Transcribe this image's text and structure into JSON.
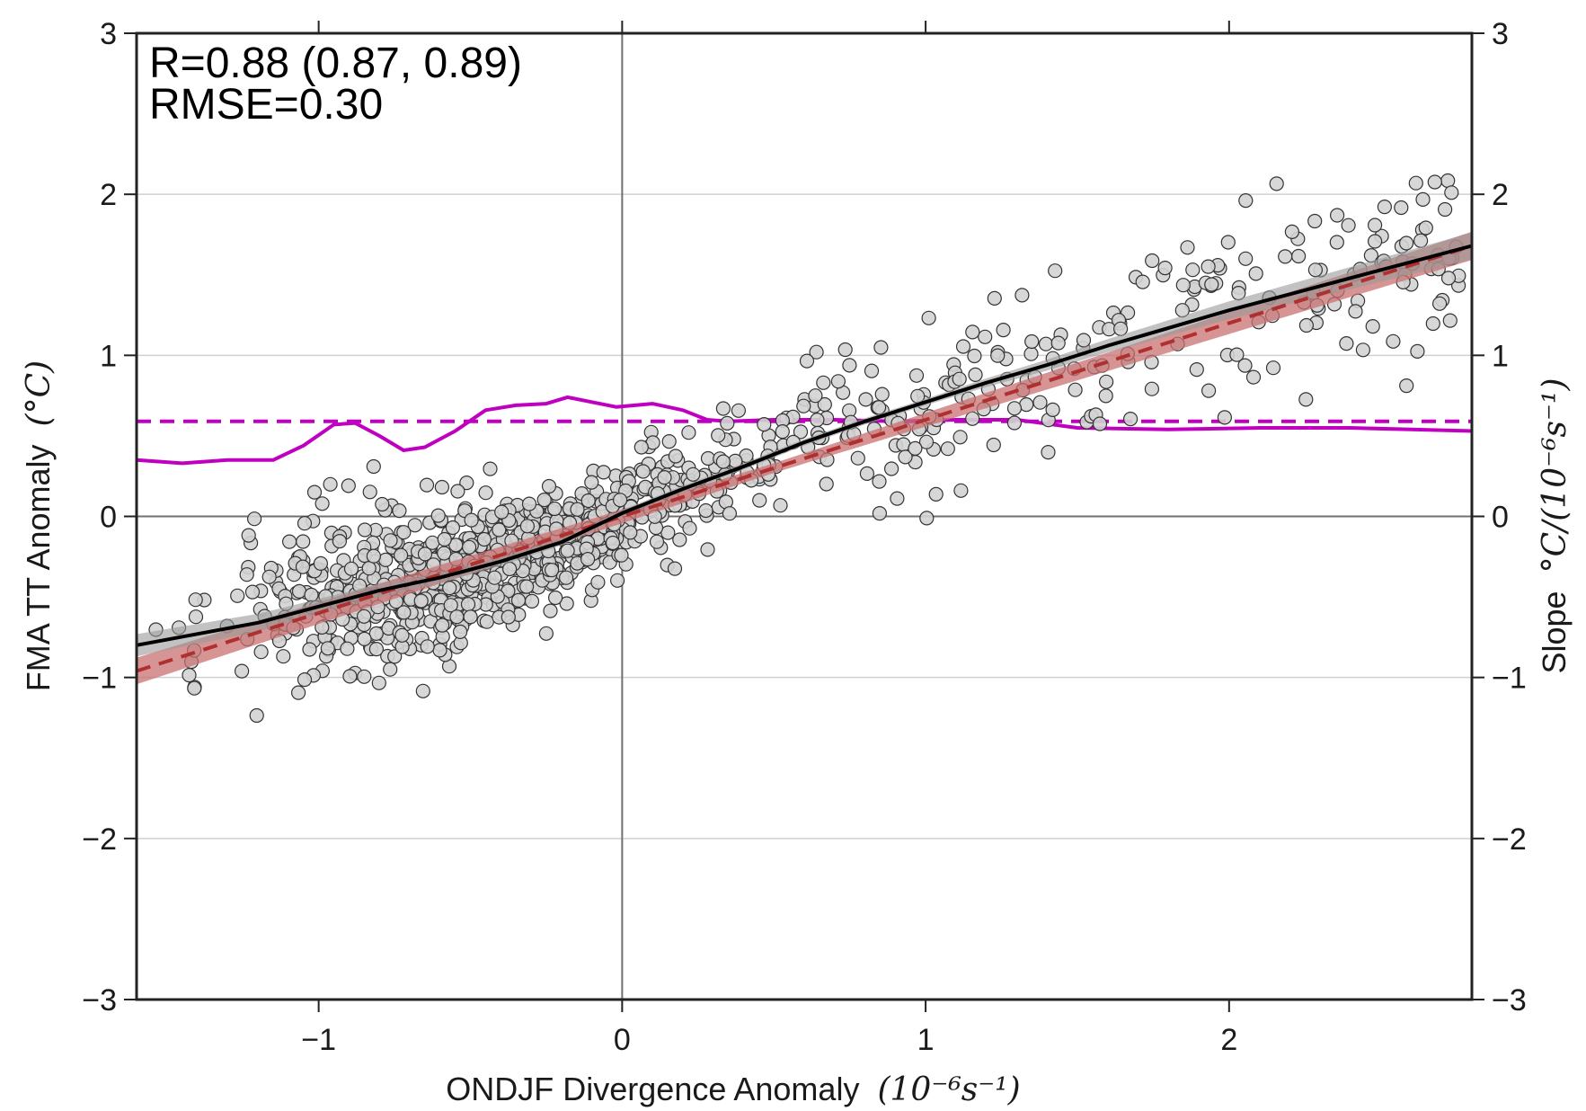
{
  "chart_data": {
    "type": "scatter",
    "xlabel": "ONDJF Divergence Anomaly",
    "xlabel_unit": "(10⁻⁶s⁻¹)",
    "ylabel": "FMA TT Anomaly",
    "ylabel_unit": "(°C)",
    "y2label": "Slope",
    "y2label_unit": "°C/(10⁻⁶s⁻¹)",
    "xlim": [
      -1.6,
      2.8
    ],
    "ylim": [
      -3,
      3
    ],
    "y2lim": [
      -3,
      3
    ],
    "xticks": [
      -1,
      0,
      1,
      2
    ],
    "yticks": [
      -3,
      -2,
      -1,
      0,
      1,
      2,
      3
    ],
    "xtick_labels": [
      "−1",
      "0",
      "1",
      "2"
    ],
    "ytick_labels": [
      "−3",
      "−2",
      "−1",
      "0",
      "1",
      "2",
      "3"
    ],
    "y2tick_labels": [
      "−3",
      "−2",
      "−1",
      "0",
      "1",
      "2",
      "3"
    ],
    "grid": "horizontal",
    "annotations": [
      "R=0.88 (0.87, 0.89)",
      "RMSE=0.30"
    ],
    "colors": {
      "points_fill": "#d3d3d3",
      "points_edge": "#333333",
      "loess_line": "#000000",
      "loess_band": "#9a9a9a",
      "linear_fit": "#b03030",
      "linear_band": "#c87070",
      "slope_line": "#c000c0",
      "zero_lines": "#707070",
      "grid": "#d0d0d0"
    },
    "loess_fit": {
      "x": [
        -1.6,
        -1.4,
        -1.2,
        -1.0,
        -0.8,
        -0.6,
        -0.4,
        -0.2,
        0.0,
        0.2,
        0.4,
        0.6,
        0.8,
        1.0,
        1.2,
        1.4,
        1.6,
        1.8,
        2.0,
        2.2,
        2.4,
        2.6,
        2.8
      ],
      "y": [
        -0.8,
        -0.73,
        -0.66,
        -0.56,
        -0.46,
        -0.38,
        -0.28,
        -0.16,
        0.02,
        0.17,
        0.31,
        0.46,
        0.59,
        0.71,
        0.83,
        0.94,
        1.06,
        1.17,
        1.28,
        1.38,
        1.48,
        1.58,
        1.68
      ]
    },
    "linear_fit": {
      "slope": 0.6,
      "intercept": 0.0
    },
    "mean_slope": 0.59,
    "running_slope": {
      "x": [
        -1.6,
        -1.45,
        -1.3,
        -1.15,
        -1.05,
        -0.95,
        -0.88,
        -0.8,
        -0.72,
        -0.65,
        -0.55,
        -0.45,
        -0.35,
        -0.25,
        -0.18,
        -0.1,
        -0.02,
        0.1,
        0.2,
        0.28,
        0.35,
        0.5,
        0.7,
        0.9,
        1.1,
        1.3,
        1.5,
        1.8,
        2.1,
        2.4,
        2.6,
        2.8
      ],
      "y": [
        0.35,
        0.33,
        0.35,
        0.35,
        0.44,
        0.57,
        0.58,
        0.5,
        0.41,
        0.43,
        0.53,
        0.66,
        0.69,
        0.7,
        0.74,
        0.71,
        0.68,
        0.7,
        0.66,
        0.6,
        0.59,
        0.6,
        0.6,
        0.59,
        0.6,
        0.6,
        0.55,
        0.54,
        0.55,
        0.55,
        0.54,
        0.53
      ]
    },
    "scatter_seed": 20240611,
    "scatter_count": 1150
  }
}
